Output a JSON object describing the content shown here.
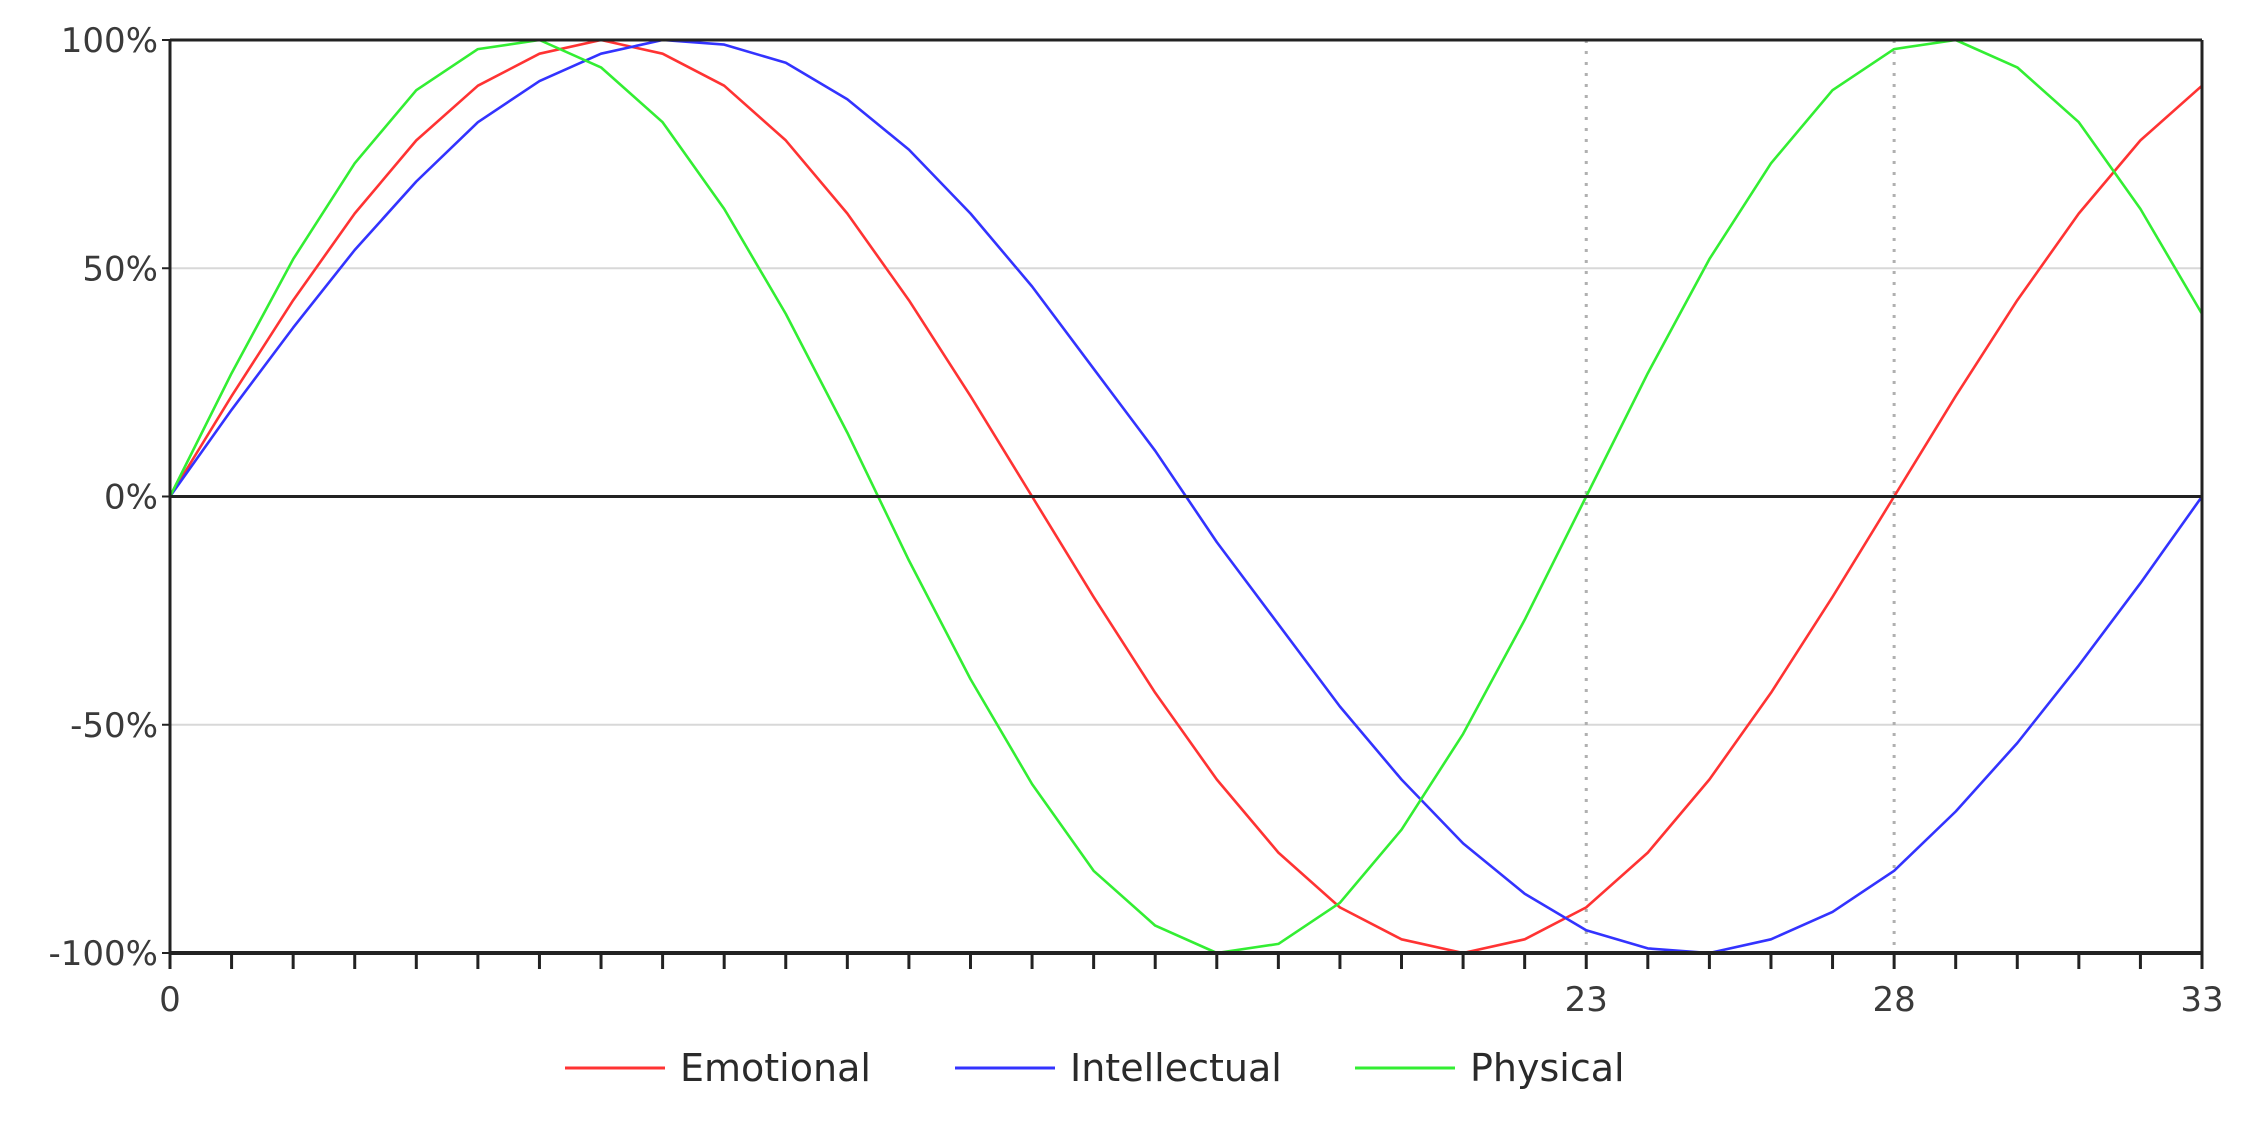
{
  "chart_data": {
    "type": "line",
    "title": "",
    "xlabel": "",
    "ylabel": "",
    "x": [
      0,
      1,
      2,
      3,
      4,
      5,
      6,
      7,
      8,
      9,
      10,
      11,
      12,
      13,
      14,
      15,
      16,
      17,
      18,
      19,
      20,
      21,
      22,
      23,
      24,
      25,
      26,
      27,
      28,
      29,
      30,
      31,
      32,
      33
    ],
    "xlim": [
      0,
      33
    ],
    "ylim": [
      -100,
      100
    ],
    "x_tick_values": [
      0,
      23,
      28,
      33
    ],
    "x_tick_labels": [
      "0",
      "23",
      "28",
      "33"
    ],
    "y_tick_values": [
      100,
      50,
      0,
      -50,
      -100
    ],
    "y_tick_labels": [
      "100%",
      "50%",
      "0%",
      "-50%",
      "-100%"
    ],
    "highlighted_days": [
      23,
      28
    ],
    "grid": true,
    "legend_position": "bottom",
    "series": [
      {
        "name": "Emotional",
        "color": "#ff3333",
        "values": [
          0,
          22,
          43,
          62,
          78,
          90,
          97,
          100,
          97,
          90,
          78,
          62,
          43,
          22,
          0,
          -22,
          -43,
          -62,
          -78,
          -90,
          -97,
          -100,
          -97,
          -90,
          -78,
          -62,
          -43,
          -22,
          0,
          22,
          43,
          62,
          78,
          90
        ]
      },
      {
        "name": "Intellectual",
        "color": "#3333ff",
        "values": [
          0,
          19,
          37,
          54,
          69,
          82,
          91,
          97,
          100,
          99,
          95,
          87,
          76,
          62,
          46,
          28,
          10,
          -10,
          -28,
          -46,
          -62,
          -76,
          -87,
          -95,
          -99,
          -100,
          -97,
          -91,
          -82,
          -69,
          -54,
          -37,
          -19,
          0
        ]
      },
      {
        "name": "Physical",
        "color": "#33ee33",
        "values": [
          0,
          27,
          52,
          73,
          89,
          98,
          100,
          94,
          82,
          63,
          40,
          14,
          -14,
          -40,
          -63,
          -82,
          -94,
          -100,
          -98,
          -89,
          -73,
          -52,
          -27,
          0,
          27,
          52,
          73,
          89,
          98,
          100,
          94,
          82,
          63,
          40
        ]
      }
    ]
  }
}
